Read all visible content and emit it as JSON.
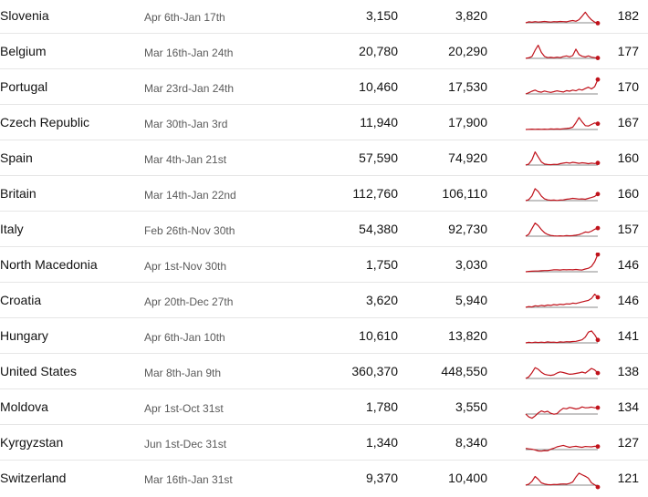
{
  "colors": {
    "line": "#c0121b",
    "baseline": "#8a8a8a",
    "text": "#121212",
    "muted": "#5a5a5a",
    "divider": "#e6e6e6"
  },
  "chart_data": {
    "type": "table",
    "columns": [
      "country",
      "period",
      "value_a",
      "value_b",
      "sparkline",
      "score"
    ],
    "rows": [
      {
        "country": "Slovenia",
        "period": "Apr 6th-Jan 17th",
        "value_a": "3,150",
        "value_b": "3,820",
        "score": "182",
        "spark": [
          0,
          0.5,
          0.3,
          0.6,
          0.4,
          0.5,
          0.7,
          0.5,
          0.4,
          0.6,
          0.5,
          0.7,
          0.6,
          0.5,
          0.9,
          1.2,
          0.8,
          1.6,
          3.4,
          5.5,
          3.2,
          1.5,
          0.4,
          -0.2
        ]
      },
      {
        "country": "Belgium",
        "period": "Mar 16th-Jan 24th",
        "value_a": "20,780",
        "value_b": "20,290",
        "score": "177",
        "spark": [
          0,
          0.3,
          1.0,
          4.2,
          6.8,
          3.1,
          1.0,
          0.4,
          0.5,
          0.3,
          0.6,
          0.4,
          0.9,
          1.3,
          0.8,
          1.4,
          4.8,
          2.0,
          1.1,
          0.7,
          1.3,
          0.6,
          0.4,
          0.2
        ]
      },
      {
        "country": "Portugal",
        "period": "Mar 23rd-Jan 24th",
        "value_a": "10,460",
        "value_b": "17,530",
        "score": "170",
        "spark": [
          0,
          0.6,
          1.4,
          2.0,
          1.2,
          0.9,
          1.5,
          1.1,
          0.8,
          1.2,
          1.6,
          1.3,
          1.0,
          1.7,
          1.4,
          2.0,
          1.6,
          2.4,
          2.0,
          2.8,
          3.5,
          2.6,
          3.8,
          7.5
        ]
      },
      {
        "country": "Czech Republic",
        "period": "Mar 30th-Jan 3rd",
        "value_a": "11,940",
        "value_b": "17,900",
        "score": "167",
        "spark": [
          0,
          0.1,
          0.2,
          0.1,
          0.2,
          0.1,
          0.2,
          0.1,
          0.3,
          0.2,
          0.3,
          0.2,
          0.4,
          0.5,
          0.7,
          1.2,
          3.5,
          6.2,
          4.0,
          2.0,
          1.8,
          2.6,
          3.4,
          3.0
        ]
      },
      {
        "country": "Spain",
        "period": "Mar 4th-Jan 21st",
        "value_a": "57,590",
        "value_b": "74,920",
        "score": "160",
        "spark": [
          0,
          0.5,
          2.8,
          6.8,
          4.2,
          1.6,
          0.5,
          0.3,
          0.2,
          0.4,
          0.3,
          0.7,
          1.0,
          1.3,
          1.0,
          1.4,
          1.2,
          0.9,
          1.2,
          1.0,
          0.7,
          1.0,
          0.8,
          1.1
        ]
      },
      {
        "country": "Britain",
        "period": "Mar 14th-Jan 22nd",
        "value_a": "112,760",
        "value_b": "106,110",
        "score": "160",
        "spark": [
          0,
          0.5,
          2.5,
          6.2,
          4.8,
          2.3,
          0.9,
          0.4,
          0.2,
          0.3,
          0.1,
          0.3,
          0.4,
          0.7,
          0.9,
          1.2,
          1.0,
          0.8,
          0.9,
          0.7,
          1.2,
          1.6,
          2.2,
          3.4
        ]
      },
      {
        "country": "Italy",
        "period": "Feb 26th-Nov 30th",
        "value_a": "54,380",
        "value_b": "92,730",
        "score": "157",
        "spark": [
          0,
          1.0,
          4.0,
          6.8,
          5.5,
          3.4,
          1.8,
          0.9,
          0.4,
          0.2,
          0.1,
          0.2,
          0.1,
          0.3,
          0.2,
          0.3,
          0.5,
          0.8,
          1.4,
          2.2,
          2.0,
          2.6,
          3.6,
          4.2
        ]
      },
      {
        "country": "North Macedonia",
        "period": "Apr 1st-Nov 30th",
        "value_a": "1,750",
        "value_b": "3,030",
        "score": "146",
        "spark": [
          0,
          0.2,
          0.3,
          0.4,
          0.4,
          0.5,
          0.6,
          0.6,
          0.8,
          1.0,
          1.0,
          0.9,
          1.1,
          1.0,
          1.1,
          1.0,
          1.2,
          1.0,
          0.9,
          1.4,
          1.8,
          2.8,
          5.2,
          9.0
        ]
      },
      {
        "country": "Croatia",
        "period": "Apr 20th-Dec 27th",
        "value_a": "3,620",
        "value_b": "5,940",
        "score": "146",
        "spark": [
          0,
          0.4,
          0.2,
          0.8,
          0.6,
          1.0,
          0.7,
          1.2,
          1.0,
          1.4,
          1.2,
          1.6,
          1.4,
          1.8,
          1.7,
          2.2,
          2.0,
          2.4,
          2.8,
          3.2,
          3.6,
          4.6,
          6.8,
          5.2
        ]
      },
      {
        "country": "Hungary",
        "period": "Apr 6th-Jan 10th",
        "value_a": "10,610",
        "value_b": "13,820",
        "score": "141",
        "spark": [
          0,
          0.3,
          0.1,
          0.4,
          0.2,
          0.4,
          0.2,
          0.5,
          0.3,
          0.4,
          0.2,
          0.5,
          0.4,
          0.6,
          0.5,
          0.7,
          0.8,
          1.2,
          1.6,
          3.0,
          5.6,
          6.2,
          4.2,
          1.5
        ]
      },
      {
        "country": "United States",
        "period": "Mar 8th-Jan 9th",
        "value_a": "360,370",
        "value_b": "448,550",
        "score": "138",
        "spark": [
          0,
          0.8,
          3.0,
          5.6,
          4.8,
          3.2,
          2.2,
          1.8,
          1.6,
          1.9,
          2.8,
          3.4,
          3.1,
          2.6,
          2.2,
          2.3,
          2.6,
          2.9,
          3.3,
          2.8,
          4.0,
          5.2,
          4.4,
          2.8
        ]
      },
      {
        "country": "Moldova",
        "period": "Apr 1st-Oct 31st",
        "value_a": "1,780",
        "value_b": "3,550",
        "score": "134",
        "spark": [
          0,
          -1.5,
          -2.2,
          -1.0,
          0.5,
          1.6,
          1.0,
          1.4,
          0.4,
          -0.1,
          0.2,
          1.8,
          3.0,
          2.7,
          3.4,
          3.1,
          2.6,
          2.9,
          3.7,
          3.2,
          3.3,
          3.6,
          3.2,
          3.3
        ]
      },
      {
        "country": "Kyrgyzstan",
        "period": "Jun 1st-Dec 31st",
        "value_a": "1,340",
        "value_b": "8,340",
        "score": "127",
        "spark": [
          0.6,
          0.4,
          0.2,
          -0.2,
          -0.7,
          -0.8,
          -0.5,
          -0.6,
          0.2,
          0.7,
          1.4,
          1.8,
          2.2,
          1.6,
          1.2,
          1.5,
          1.7,
          1.4,
          1.2,
          1.6,
          1.5,
          1.4,
          1.7,
          1.6
        ]
      },
      {
        "country": "Switzerland",
        "period": "Mar 16th-Jan 31st",
        "value_a": "9,370",
        "value_b": "10,400",
        "score": "121",
        "spark": [
          0,
          0.5,
          2.0,
          4.5,
          3.1,
          1.2,
          0.6,
          0.3,
          0.2,
          0.4,
          0.3,
          0.5,
          0.6,
          0.5,
          0.9,
          1.6,
          4.2,
          6.2,
          5.4,
          4.6,
          3.6,
          1.2,
          0.2,
          -1.0
        ]
      }
    ]
  }
}
